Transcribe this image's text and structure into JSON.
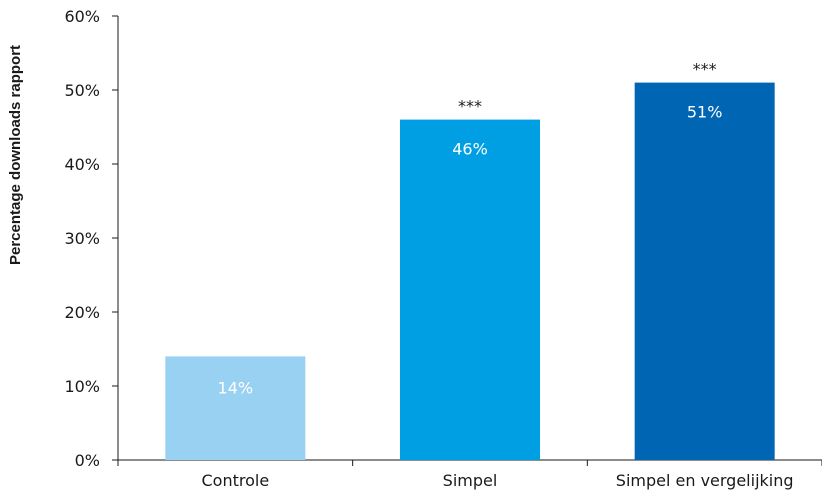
{
  "chart_data": {
    "type": "bar",
    "ylabel": "Percentage downloads rapport",
    "xlabel": "",
    "ylim": [
      0,
      60
    ],
    "y_ticks": [
      "0%",
      "10%",
      "20%",
      "30%",
      "40%",
      "50%",
      "60%"
    ],
    "y_tick_values": [
      0,
      10,
      20,
      30,
      40,
      50,
      60
    ],
    "categories": [
      "Controle",
      "Simpel",
      "Simpel en vergelijking"
    ],
    "values": [
      14,
      46,
      51
    ],
    "value_labels": [
      "14%",
      "46%",
      "51%"
    ],
    "significance": [
      "",
      "***",
      "***"
    ],
    "colors": [
      "#99d1f2",
      "#009fe3",
      "#0066b3"
    ],
    "grid": false
  }
}
